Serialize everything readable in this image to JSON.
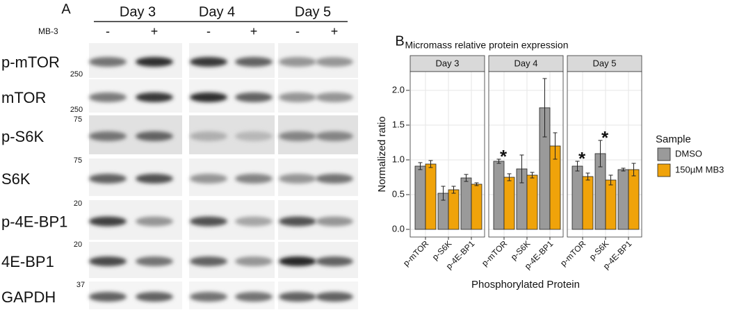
{
  "panel_a": {
    "label": "A",
    "days": [
      "Day 3",
      "Day 4",
      "Day 5"
    ],
    "treatment_label": "MB-3",
    "treatments": [
      "-",
      "+",
      "-",
      "+",
      "-",
      "+"
    ],
    "rows": [
      {
        "name": "p-mTOR",
        "marker": "250"
      },
      {
        "name": "mTOR",
        "marker": "250"
      },
      {
        "name": "p-S6K",
        "marker": "75"
      },
      {
        "name": "S6K",
        "marker": "75"
      },
      {
        "name": "p-4E-BP1",
        "marker": "20"
      },
      {
        "name": "4E-BP1",
        "marker": "20"
      },
      {
        "name": "GAPDH",
        "marker": "37"
      }
    ]
  },
  "chart_data": {
    "type": "bar",
    "panel_label": "B",
    "title": "Micromass relative protein expression",
    "x_label": "Phosphorylated Protein",
    "y_label": "Normalized ratio",
    "legend_title": "Sample",
    "facets": [
      "Day 3",
      "Day 4",
      "Day 5"
    ],
    "categories": [
      "p-mTOR",
      "p-S6K",
      "p-4E-BP1"
    ],
    "series": [
      {
        "name": "DMSO",
        "color": "#9a9a9a",
        "values": [
          [
            0.91,
            0.52,
            0.74
          ],
          [
            0.98,
            0.87,
            1.75
          ],
          [
            0.91,
            1.09,
            0.86
          ]
        ],
        "errors": [
          [
            0.05,
            0.1,
            0.05
          ],
          [
            0.03,
            0.2,
            0.42
          ],
          [
            0.07,
            0.19,
            0.02
          ]
        ]
      },
      {
        "name": "150µM MB3",
        "color": "#f0a30a",
        "values": [
          [
            0.94,
            0.57,
            0.65
          ],
          [
            0.75,
            0.78,
            1.2
          ],
          [
            0.76,
            0.71,
            0.86
          ]
        ],
        "errors": [
          [
            0.05,
            0.05,
            0.02
          ],
          [
            0.05,
            0.04,
            0.19
          ],
          [
            0.05,
            0.07,
            0.09
          ]
        ]
      }
    ],
    "significance": [
      [
        null,
        null,
        null
      ],
      [
        "*",
        null,
        null
      ],
      [
        "*",
        "*",
        null
      ]
    ],
    "ylim": [
      -0.11,
      2.27
    ],
    "yticks": [
      {
        "value": 0,
        "label": "0.0"
      },
      {
        "value": 0.5,
        "label": "0.5"
      },
      {
        "value": 1,
        "label": "1.0"
      },
      {
        "value": 1.5,
        "label": "1.5"
      },
      {
        "value": 2,
        "label": "2.0"
      }
    ],
    "grid": true
  }
}
